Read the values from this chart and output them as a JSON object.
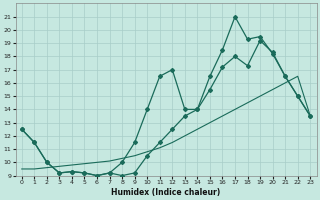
{
  "title": "",
  "xlabel": "Humidex (Indice chaleur)",
  "xlim": [
    -0.5,
    23.5
  ],
  "ylim": [
    9,
    22
  ],
  "yticks": [
    9,
    10,
    11,
    12,
    13,
    14,
    15,
    16,
    17,
    18,
    19,
    20,
    21
  ],
  "xticks": [
    0,
    1,
    2,
    3,
    4,
    5,
    6,
    7,
    8,
    9,
    10,
    11,
    12,
    13,
    14,
    15,
    16,
    17,
    18,
    19,
    20,
    21,
    22,
    23
  ],
  "bg_color": "#c6e8e0",
  "line_color": "#1a6b5a",
  "grid_color": "#a8cec8",
  "line_straight_x": [
    0,
    1,
    2,
    3,
    4,
    5,
    6,
    7,
    8,
    9,
    10,
    11,
    12,
    13,
    14,
    15,
    16,
    17,
    18,
    19,
    20,
    21,
    22,
    23
  ],
  "line_straight_y": [
    9.5,
    9.5,
    9.6,
    9.7,
    9.8,
    9.9,
    10.0,
    10.1,
    10.3,
    10.5,
    10.8,
    11.1,
    11.5,
    12.0,
    12.5,
    13.0,
    13.5,
    14.0,
    14.5,
    15.0,
    15.5,
    16.0,
    16.5,
    13.5
  ],
  "line_lower_x": [
    0,
    1,
    2,
    3,
    4,
    5,
    6,
    7,
    8,
    9,
    10,
    11,
    12,
    13,
    14,
    15,
    16,
    17,
    18,
    19,
    20,
    21,
    22,
    23
  ],
  "line_lower_y": [
    12.5,
    11.5,
    10.0,
    9.2,
    9.3,
    9.2,
    9.0,
    9.2,
    9.0,
    9.2,
    10.5,
    11.5,
    12.5,
    13.5,
    14.0,
    15.5,
    17.2,
    18.0,
    17.3,
    19.2,
    18.3,
    16.5,
    15.0,
    13.5
  ],
  "line_upper_x": [
    0,
    1,
    2,
    3,
    4,
    5,
    6,
    7,
    8,
    9,
    10,
    11,
    12,
    13,
    14,
    15,
    16,
    17,
    18,
    19,
    20,
    21,
    22,
    23
  ],
  "line_upper_y": [
    12.5,
    11.5,
    10.0,
    9.2,
    9.3,
    9.2,
    9.0,
    9.2,
    10.0,
    11.5,
    14.0,
    16.5,
    17.0,
    14.0,
    14.0,
    16.5,
    18.5,
    21.0,
    19.3,
    19.5,
    18.2,
    16.5,
    15.0,
    13.5
  ]
}
